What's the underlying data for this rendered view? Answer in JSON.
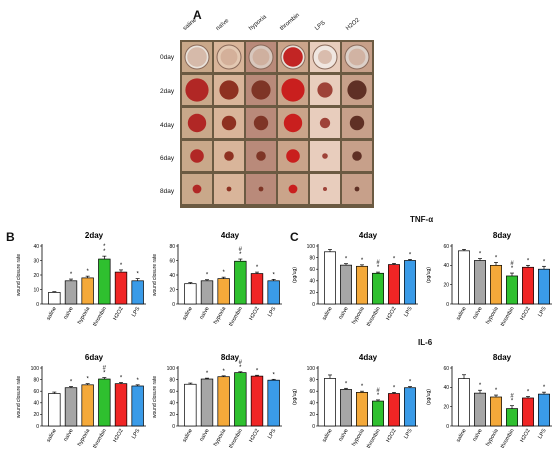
{
  "panel_a": {
    "letter": "A",
    "conditions": [
      "saline",
      "naïve",
      "hypoxia",
      "thrombin",
      "LPS",
      "H2O2"
    ],
    "days": [
      "0day",
      "2day",
      "4day",
      "6day",
      "8day"
    ]
  },
  "panel_b": {
    "letter": "B"
  },
  "panel_c": {
    "letter": "C",
    "tnf_title": "TNF-α",
    "il6_title": "IL-6"
  },
  "colors": {
    "saline": "#ffffff",
    "naive": "#a6a6a6",
    "hypoxia": "#f4a93a",
    "thrombin": "#2fc02f",
    "h2o2": "#f02525",
    "lps": "#3a9be8"
  },
  "chart_data": [
    {
      "id": "b_2day",
      "type": "bar",
      "title": "2day",
      "ylabel": "wound closure rate",
      "ylim": [
        0,
        40
      ],
      "yticks": [
        0,
        10,
        20,
        30,
        40
      ],
      "categories": [
        "saline",
        "naïve",
        "hypoxia",
        "thrombin",
        "H2O2",
        "LPS"
      ],
      "colors": [
        "#ffffff",
        "#a6a6a6",
        "#f4a93a",
        "#2fc02f",
        "#f02525",
        "#3a9be8"
      ],
      "values": [
        8,
        16,
        18,
        31,
        22,
        16
      ],
      "errors": [
        0.5,
        1.2,
        1.2,
        2,
        1.5,
        1.5
      ],
      "annotations": [
        "",
        "*",
        "*",
        "*\n*",
        "*",
        "*"
      ]
    },
    {
      "id": "b_4day",
      "type": "bar",
      "title": "4day",
      "ylabel": "wound closure rate",
      "ylim": [
        0,
        80
      ],
      "yticks": [
        0,
        20,
        40,
        60,
        80
      ],
      "categories": [
        "saline",
        "naïve",
        "hypoxia",
        "thrombin",
        "H2O2",
        "LPS"
      ],
      "colors": [
        "#ffffff",
        "#a6a6a6",
        "#f4a93a",
        "#2fc02f",
        "#f02525",
        "#3a9be8"
      ],
      "values": [
        28,
        32,
        35,
        59,
        42,
        32
      ],
      "errors": [
        1.5,
        1.5,
        2,
        3,
        2,
        2
      ],
      "annotations": [
        "",
        "*",
        "*",
        "#\n*",
        "*",
        "*"
      ]
    },
    {
      "id": "b_6day",
      "type": "bar",
      "title": "6day",
      "ylabel": "wound closure rate",
      "ylim": [
        0,
        100
      ],
      "yticks": [
        0,
        20,
        40,
        60,
        80,
        100
      ],
      "categories": [
        "saline",
        "naïve",
        "hypoxia",
        "thrombin",
        "H2O2",
        "LPS"
      ],
      "colors": [
        "#ffffff",
        "#a6a6a6",
        "#f4a93a",
        "#2fc02f",
        "#f02525",
        "#3a9be8"
      ],
      "values": [
        56,
        66,
        71,
        81,
        73,
        69
      ],
      "errors": [
        2.5,
        2,
        2,
        2.5,
        2,
        2
      ],
      "annotations": [
        "",
        "*",
        "*",
        "#\n*",
        "*",
        "*"
      ]
    },
    {
      "id": "b_8day",
      "type": "bar",
      "title": "8day",
      "ylabel": "wound closure rate",
      "ylim": [
        0,
        100
      ],
      "yticks": [
        0,
        20,
        40,
        60,
        80,
        100
      ],
      "categories": [
        "saline",
        "naïve",
        "hypoxia",
        "thrombin",
        "H2O2",
        "LPS"
      ],
      "colors": [
        "#ffffff",
        "#a6a6a6",
        "#f4a93a",
        "#2fc02f",
        "#f02525",
        "#3a9be8"
      ],
      "values": [
        72,
        81,
        85,
        92,
        86,
        79
      ],
      "errors": [
        2,
        1.5,
        1.5,
        1.5,
        1.5,
        1.5
      ],
      "annotations": [
        "",
        "*",
        "*",
        "#\n*",
        "*",
        "*"
      ]
    },
    {
      "id": "c_tnf_4day",
      "type": "bar",
      "title": "4day",
      "ylabel": "(pg/ug)",
      "ylim": [
        0,
        100
      ],
      "yticks": [
        0,
        20,
        40,
        60,
        80,
        100
      ],
      "categories": [
        "saline",
        "naïve",
        "hypoxia",
        "thrombin",
        "H2O2",
        "LPS"
      ],
      "colors": [
        "#ffffff",
        "#a6a6a6",
        "#f4a93a",
        "#2fc02f",
        "#f02525",
        "#3a9be8"
      ],
      "values": [
        90,
        67,
        65,
        53,
        68,
        75
      ],
      "errors": [
        4,
        2.5,
        2.5,
        2,
        2,
        2
      ],
      "annotations": [
        "",
        "*",
        "*",
        "#\n*",
        "*",
        "*"
      ]
    },
    {
      "id": "c_tnf_8day",
      "type": "bar",
      "title": "8day",
      "ylabel": "(pg/ug)",
      "ylim": [
        0,
        60
      ],
      "yticks": [
        0,
        20,
        40,
        60
      ],
      "categories": [
        "saline",
        "naïve",
        "hypoxia",
        "thrombin",
        "H2O2",
        "LPS"
      ],
      "colors": [
        "#ffffff",
        "#a6a6a6",
        "#f4a93a",
        "#2fc02f",
        "#f02525",
        "#3a9be8"
      ],
      "values": [
        55,
        45,
        40,
        29,
        38,
        36
      ],
      "errors": [
        1.5,
        2,
        3,
        3,
        2,
        3
      ],
      "annotations": [
        "",
        "*",
        "*",
        "#\n*",
        "*",
        "*"
      ]
    },
    {
      "id": "c_il6_4day",
      "type": "bar",
      "title": "4day",
      "ylabel": "(pg/ug)",
      "ylim": [
        0,
        100
      ],
      "yticks": [
        0,
        20,
        40,
        60,
        80,
        100
      ],
      "categories": [
        "saline",
        "naïve",
        "hypoxia",
        "thrombin",
        "H2O2",
        "LPS"
      ],
      "colors": [
        "#ffffff",
        "#a6a6a6",
        "#f4a93a",
        "#2fc02f",
        "#f02525",
        "#3a9be8"
      ],
      "values": [
        82,
        63,
        58,
        43,
        56,
        66
      ],
      "errors": [
        6,
        2,
        2,
        2,
        2,
        2
      ],
      "annotations": [
        "",
        "*",
        "*",
        "#\n*",
        "*",
        "*"
      ]
    },
    {
      "id": "c_il6_8day",
      "type": "bar",
      "title": "8day",
      "ylabel": "(pg/ug)",
      "ylim": [
        0,
        60
      ],
      "yticks": [
        0,
        20,
        40,
        60
      ],
      "categories": [
        "saline",
        "naïve",
        "hypoxia",
        "thrombin",
        "H2O2",
        "LPS"
      ],
      "colors": [
        "#ffffff",
        "#a6a6a6",
        "#f4a93a",
        "#2fc02f",
        "#f02525",
        "#3a9be8"
      ],
      "values": [
        49,
        34,
        30,
        18,
        29,
        33
      ],
      "errors": [
        4,
        3,
        2,
        3,
        1.5,
        2
      ],
      "annotations": [
        "",
        "*",
        "*",
        "#\n*",
        "*",
        "*"
      ]
    }
  ]
}
